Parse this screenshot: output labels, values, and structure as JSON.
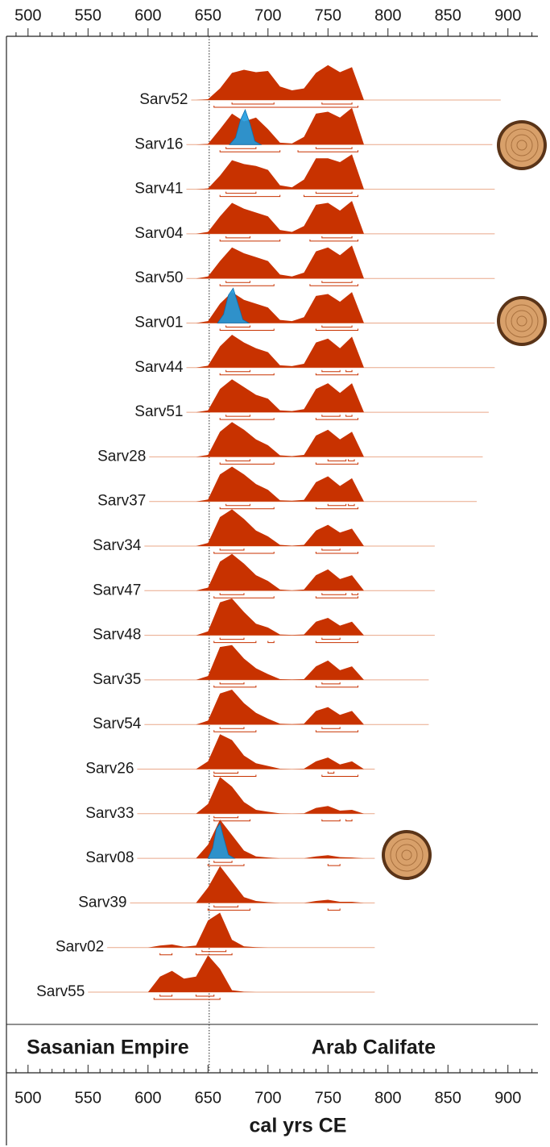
{
  "chart_data": {
    "type": "ridgeline",
    "xlim": [
      482,
      925
    ],
    "xticks": [
      500,
      550,
      600,
      650,
      700,
      750,
      800,
      850,
      900
    ],
    "xminorticks": [
      490,
      510,
      520,
      530,
      540,
      560,
      570,
      580,
      590,
      610,
      620,
      630,
      640,
      660,
      670,
      680,
      690,
      710,
      720,
      730,
      740,
      760,
      770,
      780,
      790,
      810,
      820,
      830,
      840,
      860,
      870,
      880,
      890,
      910,
      920
    ],
    "xlabel": "cal yrs CE",
    "boundary": 651,
    "periods": [
      "Sasanian Empire",
      "Arab Califate"
    ],
    "color": "#c83200",
    "wiggle_color": "#1e9be0",
    "density_x": [
      600,
      610,
      620,
      630,
      640,
      650,
      660,
      670,
      680,
      690,
      700,
      710,
      720,
      730,
      740,
      750,
      760,
      770,
      780
    ],
    "samples": [
      {
        "name": "Sarv52",
        "span": [
          636,
          894
        ],
        "density": [
          0,
          0,
          0,
          0,
          0,
          0.02,
          0.3,
          0.7,
          0.78,
          0.72,
          0.75,
          0.35,
          0.25,
          0.3,
          0.7,
          0.9,
          0.72,
          0.85,
          0
        ],
        "hpd68": [
          [
            670,
            705
          ],
          [
            745,
            770
          ]
        ],
        "hpd95": [
          [
            655,
            775
          ]
        ]
      },
      {
        "name": "Sarv16",
        "span": [
          632,
          887
        ],
        "density": [
          0,
          0,
          0,
          0,
          0,
          0.02,
          0.4,
          0.8,
          0.6,
          0.7,
          0.4,
          0.05,
          0.03,
          0.2,
          0.8,
          0.85,
          0.7,
          0.95,
          0
        ],
        "hpd68": [
          [
            665,
            690
          ],
          [
            740,
            770
          ]
        ],
        "hpd95": [
          [
            660,
            710
          ],
          [
            725,
            775
          ]
        ],
        "wiggle": {
          "x": [
            668,
            673,
            677,
            681,
            685,
            689,
            694
          ],
          "density": [
            0,
            0.2,
            0.7,
            1,
            0.6,
            0.1,
            0
          ]
        }
      },
      {
        "name": "Sarv41",
        "span": [
          632,
          889
        ],
        "density": [
          0,
          0,
          0,
          0,
          0,
          0.02,
          0.35,
          0.75,
          0.65,
          0.6,
          0.5,
          0.1,
          0.05,
          0.25,
          0.8,
          0.8,
          0.7,
          0.9,
          0
        ],
        "hpd68": [
          [
            665,
            690
          ],
          [
            740,
            770
          ]
        ],
        "hpd95": [
          [
            660,
            710
          ],
          [
            730,
            775
          ]
        ]
      },
      {
        "name": "Sarv04",
        "span": [
          632,
          889
        ],
        "density": [
          0,
          0,
          0,
          0,
          0,
          0.05,
          0.45,
          0.8,
          0.65,
          0.55,
          0.45,
          0.1,
          0.05,
          0.2,
          0.75,
          0.8,
          0.6,
          0.85,
          0
        ],
        "hpd68": [
          [
            665,
            685
          ],
          [
            745,
            770
          ]
        ],
        "hpd95": [
          [
            660,
            710
          ],
          [
            735,
            775
          ]
        ]
      },
      {
        "name": "Sarv50",
        "span": [
          632,
          889
        ],
        "density": [
          0,
          0,
          0,
          0,
          0,
          0.05,
          0.45,
          0.8,
          0.65,
          0.55,
          0.45,
          0.1,
          0.05,
          0.15,
          0.7,
          0.8,
          0.6,
          0.85,
          0
        ],
        "hpd68": [
          [
            665,
            685
          ],
          [
            745,
            770
          ]
        ],
        "hpd95": [
          [
            660,
            705
          ],
          [
            735,
            775
          ]
        ]
      },
      {
        "name": "Sarv01",
        "span": [
          632,
          889
        ],
        "density": [
          0,
          0,
          0,
          0,
          0,
          0.05,
          0.5,
          0.8,
          0.6,
          0.5,
          0.4,
          0.08,
          0.05,
          0.15,
          0.7,
          0.75,
          0.55,
          0.8,
          0
        ],
        "hpd68": [
          [
            665,
            685
          ],
          [
            745,
            770
          ]
        ],
        "hpd95": [
          [
            660,
            705
          ],
          [
            740,
            775
          ]
        ],
        "wiggle": {
          "x": [
            658,
            663,
            667,
            671,
            675,
            679,
            684
          ],
          "density": [
            0,
            0.25,
            0.8,
            1,
            0.55,
            0.1,
            0
          ]
        }
      },
      {
        "name": "Sarv44",
        "span": [
          632,
          889
        ],
        "density": [
          0,
          0,
          0,
          0,
          0,
          0.05,
          0.55,
          0.85,
          0.65,
          0.5,
          0.4,
          0.06,
          0.04,
          0.1,
          0.65,
          0.75,
          0.5,
          0.8,
          0
        ],
        "hpd68": [
          [
            665,
            685
          ],
          [
            745,
            760
          ],
          [
            765,
            770
          ]
        ],
        "hpd95": [
          [
            660,
            705
          ],
          [
            740,
            775
          ]
        ]
      },
      {
        "name": "Sarv51",
        "span": [
          632,
          884
        ],
        "density": [
          0,
          0,
          0,
          0,
          0,
          0.05,
          0.6,
          0.85,
          0.65,
          0.45,
          0.35,
          0.05,
          0.03,
          0.08,
          0.6,
          0.75,
          0.5,
          0.75,
          0
        ],
        "hpd68": [
          [
            665,
            685
          ],
          [
            745,
            760
          ],
          [
            765,
            770
          ]
        ],
        "hpd95": [
          [
            660,
            705
          ],
          [
            740,
            775
          ]
        ]
      },
      {
        "name": "Sarv28",
        "span": [
          601,
          879
        ],
        "density": [
          0,
          0,
          0,
          0,
          0,
          0.05,
          0.65,
          0.9,
          0.7,
          0.45,
          0.3,
          0.04,
          0.02,
          0.05,
          0.55,
          0.7,
          0.45,
          0.65,
          0
        ],
        "hpd68": [
          [
            665,
            685
          ],
          [
            750,
            765
          ],
          [
            767,
            772
          ]
        ],
        "hpd95": [
          [
            660,
            705
          ],
          [
            740,
            775
          ]
        ]
      },
      {
        "name": "Sarv37",
        "span": [
          601,
          874
        ],
        "density": [
          0,
          0,
          0,
          0,
          0,
          0.05,
          0.7,
          0.9,
          0.7,
          0.45,
          0.3,
          0.03,
          0.02,
          0.04,
          0.5,
          0.65,
          0.4,
          0.6,
          0
        ],
        "hpd68": [
          [
            665,
            685
          ],
          [
            750,
            765
          ],
          [
            767,
            772
          ]
        ],
        "hpd95": [
          [
            660,
            705
          ],
          [
            740,
            775
          ]
        ]
      },
      {
        "name": "Sarv34",
        "span": [
          597,
          839
        ],
        "density": [
          0,
          0,
          0,
          0,
          0,
          0.08,
          0.75,
          0.95,
          0.7,
          0.4,
          0.25,
          0.03,
          0.01,
          0.03,
          0.4,
          0.55,
          0.35,
          0.45,
          0
        ],
        "hpd68": [
          [
            660,
            680
          ],
          [
            745,
            760
          ]
        ],
        "hpd95": [
          [
            655,
            705
          ],
          [
            740,
            775
          ]
        ]
      },
      {
        "name": "Sarv47",
        "span": [
          597,
          839
        ],
        "density": [
          0,
          0,
          0,
          0,
          0,
          0.08,
          0.75,
          0.95,
          0.7,
          0.4,
          0.25,
          0.03,
          0.01,
          0.03,
          0.4,
          0.55,
          0.3,
          0.4,
          0
        ],
        "hpd68": [
          [
            660,
            680
          ],
          [
            745,
            765
          ],
          [
            770,
            775
          ]
        ],
        "hpd95": [
          [
            655,
            705
          ],
          [
            740,
            775
          ]
        ]
      },
      {
        "name": "Sarv48",
        "span": [
          597,
          839
        ],
        "density": [
          0,
          0,
          0,
          0,
          0,
          0.1,
          0.85,
          0.95,
          0.6,
          0.3,
          0.2,
          0.02,
          0.01,
          0.02,
          0.35,
          0.45,
          0.25,
          0.35,
          0
        ],
        "hpd68": [
          [
            660,
            680
          ],
          [
            745,
            760
          ]
        ],
        "hpd95": [
          [
            655,
            690
          ],
          [
            700,
            705
          ],
          [
            740,
            775
          ]
        ]
      },
      {
        "name": "Sarv35",
        "span": [
          597,
          834
        ],
        "density": [
          0,
          0,
          0,
          0,
          0,
          0.1,
          0.85,
          0.9,
          0.55,
          0.3,
          0.15,
          0.02,
          0.01,
          0.02,
          0.35,
          0.5,
          0.25,
          0.35,
          0
        ],
        "hpd68": [
          [
            660,
            680
          ],
          [
            745,
            760
          ]
        ],
        "hpd95": [
          [
            655,
            690
          ],
          [
            740,
            775
          ]
        ]
      },
      {
        "name": "Sarv54",
        "span": [
          597,
          834
        ],
        "density": [
          0,
          0,
          0,
          0,
          0,
          0.1,
          0.8,
          0.9,
          0.55,
          0.3,
          0.15,
          0.02,
          0.01,
          0.02,
          0.35,
          0.45,
          0.25,
          0.35,
          0
        ],
        "hpd68": [
          [
            660,
            680
          ],
          [
            745,
            760
          ]
        ],
        "hpd95": [
          [
            655,
            690
          ],
          [
            740,
            775
          ]
        ]
      },
      {
        "name": "Sarv26",
        "span": [
          591,
          789
        ],
        "density": [
          0,
          0,
          0,
          0,
          0,
          0.2,
          0.9,
          0.75,
          0.35,
          0.15,
          0.08,
          0.01,
          0,
          0.01,
          0.2,
          0.3,
          0.12,
          0.2,
          0
        ],
        "hpd68": [
          [
            655,
            675
          ],
          [
            750,
            755
          ]
        ],
        "hpd95": [
          [
            655,
            690
          ],
          [
            745,
            775
          ]
        ]
      },
      {
        "name": "Sarv33",
        "span": [
          591,
          789
        ],
        "density": [
          0,
          0,
          0,
          0,
          0,
          0.25,
          0.95,
          0.7,
          0.3,
          0.1,
          0.05,
          0.01,
          0,
          0.01,
          0.15,
          0.2,
          0.08,
          0.1,
          0
        ],
        "hpd68": [
          [
            655,
            675
          ]
        ],
        "hpd95": [
          [
            655,
            685
          ],
          [
            745,
            760
          ],
          [
            765,
            770
          ]
        ]
      },
      {
        "name": "Sarv08",
        "span": [
          591,
          789
        ],
        "density": [
          0,
          0,
          0,
          0,
          0,
          0.35,
          1,
          0.6,
          0.2,
          0.05,
          0.02,
          0,
          0,
          0,
          0.05,
          0.08,
          0.03,
          0.02,
          0
        ],
        "hpd68": [
          [
            655,
            670
          ]
        ],
        "hpd95": [
          [
            650,
            680
          ],
          [
            750,
            760
          ]
        ],
        "wiggle": {
          "x": [
            650,
            654,
            657,
            660,
            663,
            667,
            672
          ],
          "density": [
            0,
            0.3,
            0.85,
            1,
            0.6,
            0.1,
            0
          ]
        }
      },
      {
        "name": "Sarv39",
        "span": [
          585,
          789
        ],
        "density": [
          0,
          0,
          0,
          0,
          0,
          0.4,
          0.95,
          0.55,
          0.15,
          0.05,
          0.02,
          0,
          0,
          0,
          0.05,
          0.08,
          0.03,
          0.03,
          0
        ],
        "hpd68": [
          [
            655,
            675
          ]
        ],
        "hpd95": [
          [
            650,
            685
          ],
          [
            750,
            760
          ]
        ]
      },
      {
        "name": "Sarv02",
        "span": [
          566,
          789
        ],
        "density": [
          0,
          0.05,
          0.08,
          0.02,
          0.05,
          0.7,
          0.9,
          0.2,
          0.03,
          0.01,
          0,
          0,
          0,
          0,
          0,
          0,
          0,
          0,
          0
        ],
        "hpd68": [
          [
            645,
            665
          ]
        ],
        "hpd95": [
          [
            610,
            620
          ],
          [
            640,
            670
          ]
        ]
      },
      {
        "name": "Sarv55",
        "span": [
          550,
          789
        ],
        "density": [
          0,
          0.4,
          0.55,
          0.35,
          0.4,
          0.95,
          0.6,
          0.05,
          0.01,
          0,
          0,
          0,
          0,
          0,
          0,
          0,
          0,
          0,
          0
        ],
        "hpd68": [
          [
            610,
            620
          ],
          [
            640,
            655
          ]
        ],
        "hpd95": [
          [
            605,
            660
          ]
        ]
      }
    ]
  }
}
